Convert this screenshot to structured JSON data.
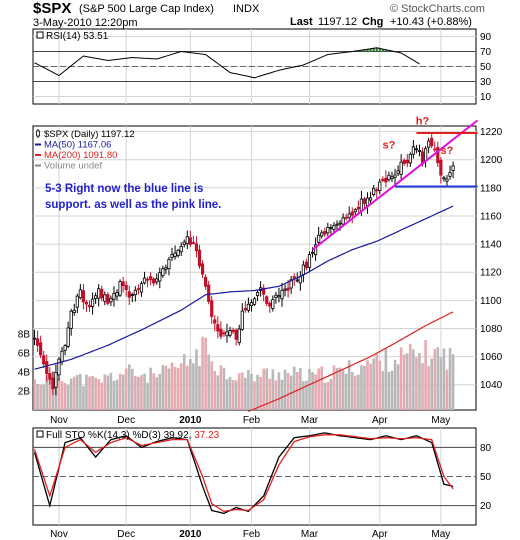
{
  "header": {
    "symbol": "$SPX",
    "name": "(S&P 500 Large Cap Index)",
    "exchange": "INDX",
    "date": "3-May-2010 12:20pm",
    "last_label": "Last",
    "last_value": "1197.12",
    "chg_label": "Chg",
    "chg_value": "+10.43 (+0.88%)",
    "brand": "© StockCharts.com"
  },
  "annotation": {
    "line1": "5-3 Right now the blue line is",
    "line2": "support. as well as the pink line."
  },
  "chart_data": [
    {
      "type": "line",
      "panel": "rsi",
      "title": "RSI(14) 53.51",
      "ylim": [
        0,
        100
      ],
      "yticks": [
        10,
        30,
        50,
        70,
        90
      ],
      "ref_lines": [
        30,
        70
      ],
      "x": [
        0,
        8,
        16,
        24,
        32,
        40,
        48,
        56,
        64,
        72,
        80,
        88,
        96,
        104,
        112,
        120,
        126
      ],
      "values": [
        55,
        38,
        64,
        58,
        62,
        60,
        70,
        66,
        42,
        35,
        45,
        52,
        66,
        70,
        75,
        68,
        53.51
      ]
    },
    {
      "type": "candlestick",
      "panel": "price",
      "legend": [
        "$SPX (Daily) 1197.12",
        "MA(50) 1167.06",
        "MA(200) 1091.80",
        "Volume undef"
      ],
      "legend_colors": [
        "#000000",
        "#1a1a9a",
        "#e02020",
        "#888888"
      ],
      "ylim": [
        1022,
        1224
      ],
      "yticks": [
        1040,
        1060,
        1080,
        1100,
        1120,
        1140,
        1160,
        1180,
        1200,
        1220
      ],
      "volume_ticks": [
        "2B",
        "4B",
        "6B",
        "8B"
      ],
      "xticks": [
        {
          "label": "Nov",
          "x": 8
        },
        {
          "label": "Dec",
          "x": 30
        },
        {
          "label": "2010",
          "x": 51
        },
        {
          "label": "Feb",
          "x": 71
        },
        {
          "label": "Mar",
          "x": 90
        },
        {
          "label": "Apr",
          "x": 113
        },
        {
          "label": "May",
          "x": 133
        }
      ],
      "close_anchors": [
        [
          0,
          1072
        ],
        [
          2,
          1060
        ],
        [
          4,
          1045
        ],
        [
          6,
          1040
        ],
        [
          7,
          1050
        ],
        [
          10,
          1068
        ],
        [
          12,
          1090
        ],
        [
          15,
          1105
        ],
        [
          18,
          1095
        ],
        [
          21,
          1108
        ],
        [
          24,
          1098
        ],
        [
          26,
          1105
        ],
        [
          28,
          1112
        ],
        [
          31,
          1102
        ],
        [
          34,
          1108
        ],
        [
          36,
          1118
        ],
        [
          39,
          1110
        ],
        [
          42,
          1122
        ],
        [
          45,
          1130
        ],
        [
          48,
          1138
        ],
        [
          50,
          1144
        ],
        [
          52,
          1140
        ],
        [
          55,
          1118
        ],
        [
          57,
          1097
        ],
        [
          59,
          1085
        ],
        [
          61,
          1073
        ],
        [
          64,
          1080
        ],
        [
          66,
          1070
        ],
        [
          68,
          1092
        ],
        [
          71,
          1100
        ],
        [
          74,
          1108
        ],
        [
          77,
          1096
        ],
        [
          80,
          1104
        ],
        [
          83,
          1110
        ],
        [
          86,
          1117
        ],
        [
          89,
          1125
        ],
        [
          92,
          1142
        ],
        [
          95,
          1148
        ],
        [
          98,
          1152
        ],
        [
          101,
          1157
        ],
        [
          104,
          1162
        ],
        [
          107,
          1170
        ],
        [
          110,
          1175
        ],
        [
          113,
          1182
        ],
        [
          116,
          1188
        ],
        [
          119,
          1194
        ],
        [
          122,
          1200
        ],
        [
          125,
          1210
        ],
        [
          127,
          1198
        ],
        [
          129,
          1213
        ],
        [
          131,
          1210
        ],
        [
          133,
          1190
        ],
        [
          135,
          1187
        ],
        [
          137,
          1197.12
        ]
      ],
      "ma50_anchors": [
        [
          0,
          1051
        ],
        [
          12,
          1058
        ],
        [
          24,
          1068
        ],
        [
          36,
          1080
        ],
        [
          48,
          1093
        ],
        [
          56,
          1104
        ],
        [
          64,
          1106
        ],
        [
          72,
          1107
        ],
        [
          80,
          1110
        ],
        [
          88,
          1118
        ],
        [
          96,
          1128
        ],
        [
          104,
          1136
        ],
        [
          112,
          1142
        ],
        [
          120,
          1150
        ],
        [
          128,
          1158
        ],
        [
          137,
          1167.06
        ]
      ],
      "ma200_anchors": [
        [
          70,
          1021
        ],
        [
          80,
          1030
        ],
        [
          90,
          1040
        ],
        [
          100,
          1050
        ],
        [
          110,
          1060
        ],
        [
          120,
          1072
        ],
        [
          128,
          1082
        ],
        [
          137,
          1091.8
        ]
      ],
      "volume_anchors": [
        [
          0,
          3
        ],
        [
          10,
          3.5
        ],
        [
          20,
          3
        ],
        [
          30,
          4
        ],
        [
          40,
          3.5
        ],
        [
          50,
          5
        ],
        [
          56,
          6.5
        ],
        [
          62,
          4
        ],
        [
          70,
          3.5
        ],
        [
          80,
          4
        ],
        [
          90,
          3.5
        ],
        [
          100,
          4
        ],
        [
          110,
          5
        ],
        [
          120,
          5.5
        ],
        [
          130,
          6
        ],
        [
          137,
          5.5
        ]
      ],
      "trendlines": [
        {
          "color": "#e010e0",
          "from": [
            91,
            1136
          ],
          "to": [
            145,
            1228
          ]
        },
        {
          "color": "#e02020",
          "from": [
            125,
            1219
          ],
          "to": [
            145,
            1219
          ]
        },
        {
          "color": "#1a3ad8",
          "from": [
            118,
            1181
          ],
          "to": [
            145,
            1181
          ]
        }
      ],
      "labels": [
        {
          "text": "s?",
          "x": 116,
          "y": 1208,
          "color": "#e02020"
        },
        {
          "text": "h?",
          "x": 127,
          "y": 1225,
          "color": "#e02020"
        },
        {
          "text": "s?",
          "x": 135,
          "y": 1204,
          "color": "#e02020"
        }
      ]
    },
    {
      "type": "line",
      "panel": "stochastic",
      "title": "Full STO %K(14,3) %D(3) 39.92, 37.23",
      "ylim": [
        0,
        100
      ],
      "yticks": [
        20,
        50,
        80
      ],
      "ref_lines": [
        20,
        80
      ],
      "series": [
        {
          "name": "%K",
          "color": "#000000",
          "x": [
            0,
            5,
            10,
            15,
            20,
            25,
            30,
            35,
            40,
            45,
            50,
            55,
            58,
            62,
            66,
            70,
            75,
            80,
            85,
            90,
            95,
            100,
            105,
            110,
            115,
            120,
            125,
            130,
            134,
            137
          ],
          "values": [
            75,
            20,
            85,
            90,
            70,
            88,
            92,
            80,
            86,
            90,
            88,
            40,
            15,
            12,
            18,
            14,
            30,
            70,
            90,
            92,
            95,
            92,
            90,
            88,
            92,
            88,
            92,
            85,
            42,
            39.92
          ]
        },
        {
          "name": "%D",
          "color": "#e02020",
          "x": [
            0,
            5,
            10,
            15,
            20,
            25,
            30,
            35,
            40,
            45,
            50,
            55,
            58,
            62,
            66,
            70,
            75,
            80,
            85,
            90,
            95,
            100,
            105,
            110,
            115,
            120,
            125,
            130,
            134,
            137
          ],
          "values": [
            78,
            30,
            80,
            88,
            75,
            85,
            90,
            82,
            85,
            88,
            88,
            50,
            22,
            14,
            16,
            15,
            26,
            62,
            86,
            91,
            93,
            93,
            91,
            89,
            90,
            89,
            90,
            88,
            50,
            37.23
          ]
        }
      ]
    }
  ]
}
